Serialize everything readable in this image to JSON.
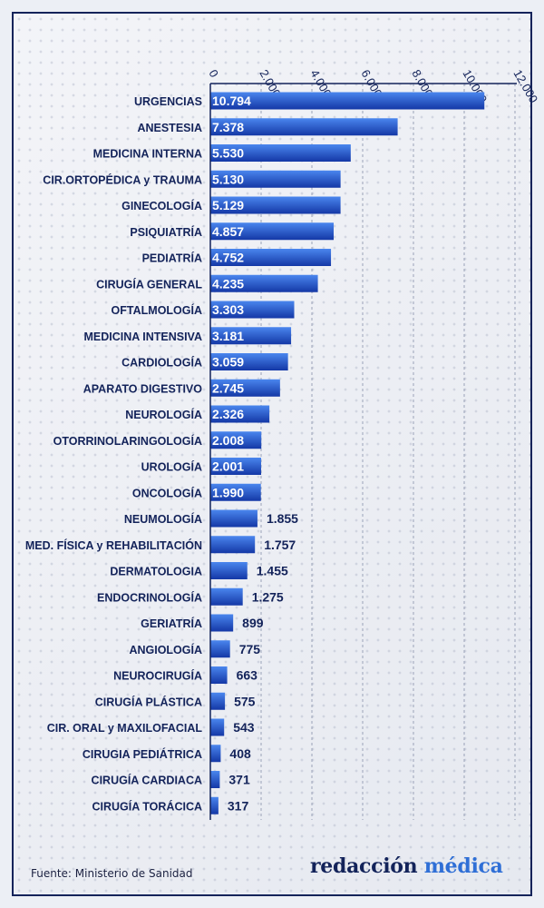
{
  "source_text": "Fuente: Ministerio de Sanidad",
  "brand": {
    "part1": "redacción",
    "part2": "médica"
  },
  "colors": {
    "bar_top": "#4a86ee",
    "bar_bottom": "#1438a6",
    "label": "#13235a",
    "value_outside": "#13235a",
    "value_inside": "#ffffff",
    "axis": "#13235a",
    "gridline": "#9aa2b8"
  },
  "chart_data": {
    "type": "bar",
    "orientation": "horizontal",
    "categories": [
      "URGENCIAS",
      "ANESTESIA",
      "MEDICINA INTERNA",
      "CIR.ORTOPÉDICA y TRAUMA",
      "GINECOLOGÍA",
      "PSIQUIATRÍA",
      "PEDIATRÍA",
      "CIRUGÍA GENERAL",
      "OFTALMOLOGÍA",
      "MEDICINA INTENSIVA",
      "CARDIOLOGÍA",
      "APARATO DIGESTIVO",
      "NEUROLOGÍA",
      "OTORRINOLARINGOLOGÍA",
      "UROLOGÍA",
      "ONCOLOGÍA",
      "NEUMOLOGÍA",
      "MED. FÍSICA y REHABILITACIÓN",
      "DERMATOLOGIA",
      "ENDOCRINOLOGÍA",
      "GERIATRÍA",
      "ANGIOLOGÍA",
      "NEUROCIRUGÍA",
      "CIRUGÍA PLÁSTICA",
      "CIR. ORAL y MAXILOFACIAL",
      "CIRUGIA PEDIÁTRICA",
      "CIRUGÍA CARDIACA",
      "CIRUGÍA TORÁCICA"
    ],
    "values": [
      10794,
      7378,
      5530,
      5130,
      5129,
      4857,
      4752,
      4235,
      3303,
      3181,
      3059,
      2745,
      2326,
      2008,
      2001,
      1990,
      1855,
      1757,
      1455,
      1275,
      899,
      775,
      663,
      575,
      543,
      408,
      371,
      317
    ],
    "value_labels": [
      "10.794",
      "7.378",
      "5.530",
      "5.130",
      "5.129",
      "4.857",
      "4.752",
      "4.235",
      "3.303",
      "3.181",
      "3.059",
      "2.745",
      "2.326",
      "2.008",
      "2.001",
      "1.990",
      "1.855",
      "1.757",
      "1.455",
      "1.275",
      "899",
      "775",
      "663",
      "575",
      "543",
      "408",
      "371",
      "317"
    ],
    "xticks": [
      0,
      2000,
      4000,
      6000,
      8000,
      10000,
      12000
    ],
    "xtick_labels": [
      "0",
      "2.000",
      "4.000",
      "6.000",
      "8.000",
      "10.000",
      "12.000"
    ],
    "xlim": [
      0,
      12000
    ],
    "grid": true,
    "axis_position": "top"
  }
}
